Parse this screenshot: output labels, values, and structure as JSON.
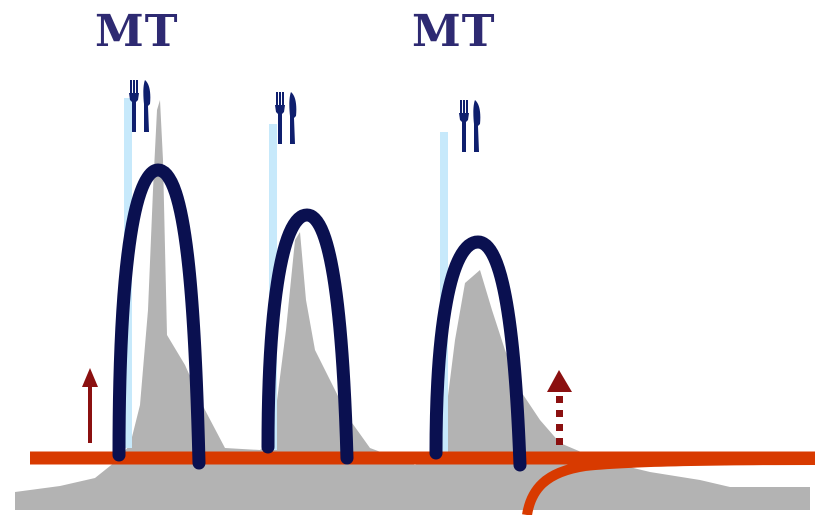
{
  "labels": {
    "mt_left": "MT",
    "mt_right": "MT"
  },
  "colors": {
    "label": "#2e2a72",
    "baseline": "#d83a00",
    "arch": "#0a1050",
    "area": "#b3b3b3",
    "bar": "#c7e9fb",
    "arrow": "#8b1010",
    "utensil": "#0f1f6e"
  },
  "icons": [
    "fork-knife-icon",
    "fork-knife-icon",
    "fork-knife-icon"
  ],
  "arrows": [
    {
      "name": "up-arrow-solid",
      "style": "solid"
    },
    {
      "name": "up-arrow-dotted",
      "style": "dotted"
    }
  ]
}
